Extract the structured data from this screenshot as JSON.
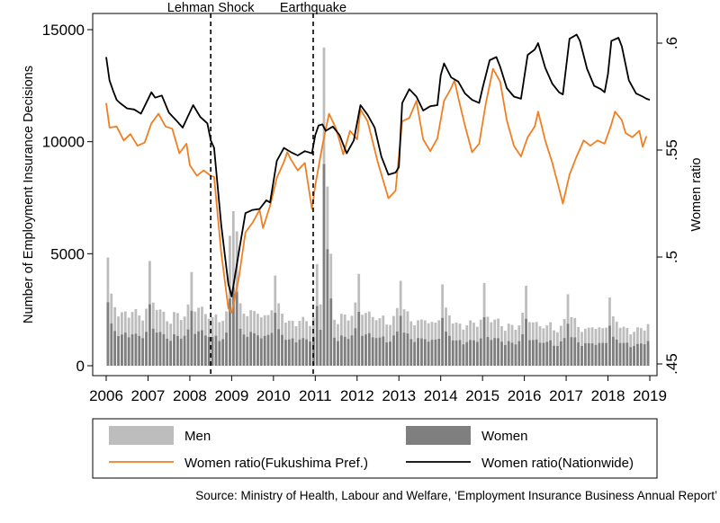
{
  "chart_data": {
    "type": "bar+line",
    "title": "",
    "source": "Source: Ministry of Health, Labour and Welfare, ‘Employment Insurance Business Annual Report’",
    "y_left": {
      "label": "Number of Employment Insurance Decisions",
      "range": [
        0,
        15000
      ],
      "ticks": [
        "0",
        "5000",
        "10000",
        "15000"
      ]
    },
    "y_right": {
      "label": "Women ratio",
      "range": [
        0.45,
        0.6
      ],
      "ticks": [
        ".45",
        ".5",
        ".55",
        ".6"
      ]
    },
    "x_axis": {
      "range": [
        2006,
        2019
      ],
      "ticks": [
        "2006",
        "2007",
        "2008",
        "2009",
        "2010",
        "2011",
        "2012",
        "2013",
        "2014",
        "2015",
        "2016",
        "2017",
        "2018",
        "2019"
      ]
    },
    "events": [
      {
        "x": 2008.5,
        "label": "Lehman Shock"
      },
      {
        "x": 2010.95,
        "label": "Earthquake"
      }
    ],
    "legend": {
      "position": "bottom",
      "items": [
        {
          "key": "men",
          "label": "Men",
          "kind": "bar",
          "color": "#bdbdbd"
        },
        {
          "key": "women",
          "label": "Women",
          "kind": "bar",
          "color": "#7f7f7f"
        },
        {
          "key": "ratio_fukushima",
          "label": "Women ratio(Fukushima Pref.)",
          "kind": "line",
          "color": "#f07f22"
        },
        {
          "key": "ratio_nationwide",
          "label": "Women ratio(Nationwide)",
          "kind": "line",
          "color": "#000000"
        }
      ]
    },
    "bars_men_annual_pattern": [
      4600,
      2900,
      2700,
      2500,
      2400,
      2300,
      2200,
      2400,
      2300,
      2200,
      2300,
      2700
    ],
    "bars_women_annual_pattern": [
      2700,
      1700,
      1600,
      1500,
      1400,
      1400,
      1300,
      1400,
      1300,
      1300,
      1400,
      1600
    ],
    "bars_men_year_scale": [
      1.0,
      0.95,
      0.95,
      1.0,
      0.85,
      0.95,
      0.9,
      0.85,
      0.8,
      0.78,
      0.75,
      0.72,
      0.7
    ],
    "bars_spikes": [
      {
        "x": 2008.92,
        "men": 5800,
        "women": 3000
      },
      {
        "x": 2009.0,
        "men": 6900,
        "women": 3500
      },
      {
        "x": 2009.08,
        "men": 6000,
        "women": 3300
      },
      {
        "x": 2011.17,
        "men": 14200,
        "women": 9000
      },
      {
        "x": 2011.25,
        "men": 8000,
        "women": 5200
      },
      {
        "x": 2011.33,
        "men": 5000,
        "women": 3000
      }
    ],
    "series_nationwide": [
      [
        2006.0,
        0.5935
      ],
      [
        2006.08,
        0.5825
      ],
      [
        2006.17,
        0.5775
      ],
      [
        2006.25,
        0.5735
      ],
      [
        2006.33,
        0.572
      ],
      [
        2006.5,
        0.5695
      ],
      [
        2006.67,
        0.569
      ],
      [
        2006.83,
        0.567
      ],
      [
        2006.92,
        0.5705
      ],
      [
        2007.08,
        0.577
      ],
      [
        2007.17,
        0.5745
      ],
      [
        2007.33,
        0.5755
      ],
      [
        2007.5,
        0.5675
      ],
      [
        2007.67,
        0.564
      ],
      [
        2007.83,
        0.5605
      ],
      [
        2008.08,
        0.571
      ],
      [
        2008.25,
        0.5655
      ],
      [
        2008.42,
        0.5625
      ],
      [
        2008.5,
        0.5545
      ],
      [
        2008.58,
        0.551
      ],
      [
        2008.75,
        0.515
      ],
      [
        2008.92,
        0.4875
      ],
      [
        2009.0,
        0.4815
      ],
      [
        2009.17,
        0.502
      ],
      [
        2009.33,
        0.5205
      ],
      [
        2009.5,
        0.522
      ],
      [
        2009.67,
        0.5225
      ],
      [
        2009.83,
        0.5265
      ],
      [
        2009.92,
        0.5255
      ],
      [
        2010.08,
        0.545
      ],
      [
        2010.25,
        0.551
      ],
      [
        2010.42,
        0.549
      ],
      [
        2010.58,
        0.5475
      ],
      [
        2010.75,
        0.5495
      ],
      [
        2010.92,
        0.5485
      ],
      [
        2011.0,
        0.557
      ],
      [
        2011.08,
        0.5615
      ],
      [
        2011.17,
        0.562
      ],
      [
        2011.25,
        0.559
      ],
      [
        2011.42,
        0.561
      ],
      [
        2011.58,
        0.557
      ],
      [
        2011.75,
        0.5485
      ],
      [
        2011.92,
        0.5545
      ],
      [
        2012.08,
        0.571
      ],
      [
        2012.25,
        0.5665
      ],
      [
        2012.42,
        0.5605
      ],
      [
        2012.58,
        0.547
      ],
      [
        2012.75,
        0.5385
      ],
      [
        2012.92,
        0.5395
      ],
      [
        2013.0,
        0.542
      ],
      [
        2013.08,
        0.572
      ],
      [
        2013.25,
        0.5785
      ],
      [
        2013.42,
        0.575
      ],
      [
        2013.58,
        0.5685
      ],
      [
        2013.75,
        0.5705
      ],
      [
        2013.92,
        0.571
      ],
      [
        2014.0,
        0.585
      ],
      [
        2014.08,
        0.5905
      ],
      [
        2014.25,
        0.584
      ],
      [
        2014.42,
        0.582
      ],
      [
        2014.58,
        0.5765
      ],
      [
        2014.75,
        0.5735
      ],
      [
        2014.92,
        0.572
      ],
      [
        2015.0,
        0.579
      ],
      [
        2015.17,
        0.592
      ],
      [
        2015.33,
        0.5935
      ],
      [
        2015.42,
        0.589
      ],
      [
        2015.58,
        0.579
      ],
      [
        2015.75,
        0.575
      ],
      [
        2015.92,
        0.574
      ],
      [
        2016.08,
        0.5945
      ],
      [
        2016.25,
        0.597
      ],
      [
        2016.33,
        0.6
      ],
      [
        2016.5,
        0.5885
      ],
      [
        2016.67,
        0.581
      ],
      [
        2016.83,
        0.577
      ],
      [
        2016.92,
        0.576
      ],
      [
        2017.08,
        0.602
      ],
      [
        2017.25,
        0.604
      ],
      [
        2017.33,
        0.601
      ],
      [
        2017.5,
        0.588
      ],
      [
        2017.67,
        0.58
      ],
      [
        2017.83,
        0.5785
      ],
      [
        2017.92,
        0.577
      ],
      [
        2018.0,
        0.5855
      ],
      [
        2018.08,
        0.601
      ],
      [
        2018.25,
        0.6025
      ],
      [
        2018.33,
        0.5985
      ],
      [
        2018.5,
        0.5825
      ],
      [
        2018.67,
        0.5765
      ],
      [
        2018.83,
        0.575
      ],
      [
        2018.92,
        0.574
      ],
      [
        2019.0,
        0.5735
      ]
    ],
    "series_fukushima": [
      [
        2006.0,
        0.572
      ],
      [
        2006.08,
        0.5605
      ],
      [
        2006.25,
        0.561
      ],
      [
        2006.42,
        0.5545
      ],
      [
        2006.58,
        0.5575
      ],
      [
        2006.75,
        0.552
      ],
      [
        2006.92,
        0.5535
      ],
      [
        2007.08,
        0.5625
      ],
      [
        2007.25,
        0.567
      ],
      [
        2007.42,
        0.561
      ],
      [
        2007.58,
        0.56
      ],
      [
        2007.75,
        0.5485
      ],
      [
        2007.92,
        0.553
      ],
      [
        2008.0,
        0.543
      ],
      [
        2008.17,
        0.538
      ],
      [
        2008.33,
        0.5405
      ],
      [
        2008.5,
        0.538
      ],
      [
        2008.58,
        0.5375
      ],
      [
        2008.75,
        0.502
      ],
      [
        2008.92,
        0.476
      ],
      [
        2009.0,
        0.474
      ],
      [
        2009.17,
        0.49
      ],
      [
        2009.33,
        0.5115
      ],
      [
        2009.5,
        0.516
      ],
      [
        2009.67,
        0.522
      ],
      [
        2009.75,
        0.5135
      ],
      [
        2009.92,
        0.524
      ],
      [
        2010.08,
        0.537
      ],
      [
        2010.25,
        0.5445
      ],
      [
        2010.33,
        0.549
      ],
      [
        2010.42,
        0.5455
      ],
      [
        2010.58,
        0.5405
      ],
      [
        2010.75,
        0.544
      ],
      [
        2010.92,
        0.5225
      ],
      [
        2011.0,
        0.5335
      ],
      [
        2011.17,
        0.552
      ],
      [
        2011.33,
        0.567
      ],
      [
        2011.5,
        0.56
      ],
      [
        2011.67,
        0.548
      ],
      [
        2011.83,
        0.559
      ],
      [
        2012.0,
        0.555
      ],
      [
        2012.08,
        0.569
      ],
      [
        2012.25,
        0.5635
      ],
      [
        2012.5,
        0.544
      ],
      [
        2012.75,
        0.5275
      ],
      [
        2012.92,
        0.531
      ],
      [
        2013.08,
        0.5635
      ],
      [
        2013.25,
        0.565
      ],
      [
        2013.42,
        0.573
      ],
      [
        2013.58,
        0.555
      ],
      [
        2013.75,
        0.5495
      ],
      [
        2013.92,
        0.5555
      ],
      [
        2014.08,
        0.573
      ],
      [
        2014.25,
        0.579
      ],
      [
        2014.33,
        0.5825
      ],
      [
        2014.42,
        0.5745
      ],
      [
        2014.58,
        0.5615
      ],
      [
        2014.75,
        0.549
      ],
      [
        2014.92,
        0.553
      ],
      [
        2015.08,
        0.572
      ],
      [
        2015.25,
        0.588
      ],
      [
        2015.42,
        0.582
      ],
      [
        2015.58,
        0.564
      ],
      [
        2015.75,
        0.552
      ],
      [
        2015.92,
        0.547
      ],
      [
        2016.08,
        0.556
      ],
      [
        2016.25,
        0.561
      ],
      [
        2016.33,
        0.568
      ],
      [
        2016.5,
        0.5545
      ],
      [
        2016.67,
        0.544
      ],
      [
        2016.83,
        0.532
      ],
      [
        2016.92,
        0.525
      ],
      [
        2017.08,
        0.5385
      ],
      [
        2017.25,
        0.547
      ],
      [
        2017.42,
        0.5545
      ],
      [
        2017.58,
        0.552
      ],
      [
        2017.75,
        0.5545
      ],
      [
        2017.92,
        0.553
      ],
      [
        2018.08,
        0.562
      ],
      [
        2018.17,
        0.568
      ],
      [
        2018.33,
        0.564
      ],
      [
        2018.42,
        0.558
      ],
      [
        2018.58,
        0.556
      ],
      [
        2018.75,
        0.559
      ],
      [
        2018.83,
        0.5515
      ],
      [
        2018.92,
        0.5565
      ]
    ]
  }
}
